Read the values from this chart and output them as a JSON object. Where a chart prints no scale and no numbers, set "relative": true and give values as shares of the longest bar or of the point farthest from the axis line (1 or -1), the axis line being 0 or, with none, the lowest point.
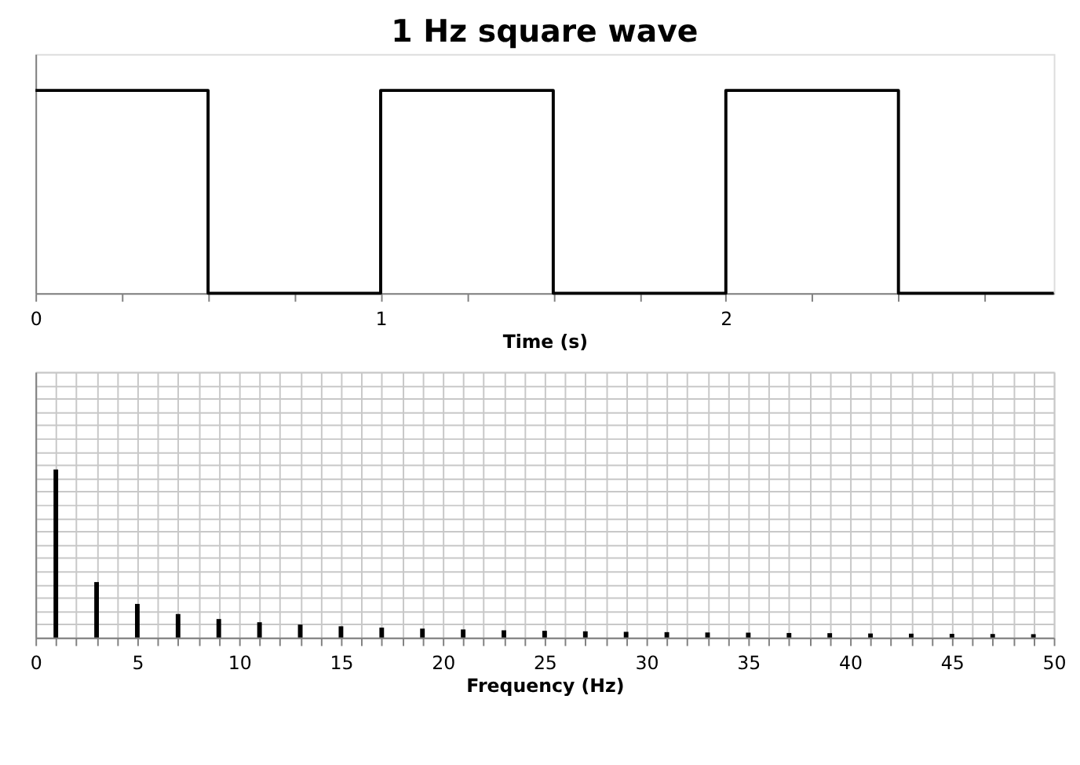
{
  "chart_data": [
    {
      "type": "step",
      "title": "1 Hz square wave",
      "xlabel": "Time (s)",
      "relative": true,
      "tick_labels": "x",
      "grid": false,
      "line_style": "solid",
      "x": [
        0,
        0.5,
        1,
        1.5,
        2,
        2.5,
        2.95
      ],
      "series": [
        {
          "color": "#000000",
          "values": [
            1,
            0,
            1,
            0,
            1,
            0,
            0
          ]
        }
      ],
      "xlim": [
        0,
        2.95
      ],
      "xticks": [
        0,
        {
          "value": 0.25,
          "label": null
        },
        {
          "value": 0.5,
          "label": null
        },
        {
          "value": 0.75,
          "label": null
        },
        1,
        {
          "value": 1.25,
          "label": null
        },
        {
          "value": 1.5,
          "label": null
        },
        {
          "value": 1.75,
          "label": null
        },
        2,
        {
          "value": 2.25,
          "label": null
        },
        {
          "value": 2.5,
          "label": null
        },
        {
          "value": 2.75,
          "label": null
        }
      ]
    },
    {
      "type": "bar",
      "xlabel": "Frequency (Hz)",
      "relative": true,
      "tick_labels": "x",
      "grid": true,
      "x": [
        1,
        3,
        5,
        7,
        9,
        11,
        13,
        15,
        17,
        19,
        21,
        23,
        25,
        27,
        29,
        31,
        33,
        35,
        37,
        39,
        41,
        43,
        45,
        47,
        49
      ],
      "series": [
        {
          "color": "#000000",
          "values": [
            1,
            0.33,
            0.2,
            0.14,
            0.11,
            0.091,
            0.077,
            0.067,
            0.059,
            0.053,
            0.048,
            0.043,
            0.04,
            0.037,
            0.034,
            0.032,
            0.03,
            0.029,
            0.027,
            0.026,
            0.024,
            0.023,
            0.022,
            0.021,
            0.02
          ]
        }
      ],
      "xlim": [
        0,
        50
      ],
      "xticks": [
        0,
        {
          "value": 1,
          "label": null
        },
        {
          "value": 2,
          "label": null
        },
        {
          "value": 3,
          "label": null
        },
        {
          "value": 4,
          "label": null
        },
        5,
        {
          "value": 6,
          "label": null
        },
        {
          "value": 7,
          "label": null
        },
        {
          "value": 8,
          "label": null
        },
        {
          "value": 9,
          "label": null
        },
        10,
        {
          "value": 11,
          "label": null
        },
        {
          "value": 12,
          "label": null
        },
        {
          "value": 13,
          "label": null
        },
        {
          "value": 14,
          "label": null
        },
        15,
        {
          "value": 16,
          "label": null
        },
        {
          "value": 17,
          "label": null
        },
        {
          "value": 18,
          "label": null
        },
        {
          "value": 19,
          "label": null
        },
        20,
        {
          "value": 21,
          "label": null
        },
        {
          "value": 22,
          "label": null
        },
        {
          "value": 23,
          "label": null
        },
        {
          "value": 24,
          "label": null
        },
        25,
        {
          "value": 26,
          "label": null
        },
        {
          "value": 27,
          "label": null
        },
        {
          "value": 28,
          "label": null
        },
        {
          "value": 29,
          "label": null
        },
        30,
        {
          "value": 31,
          "label": null
        },
        {
          "value": 32,
          "label": null
        },
        {
          "value": 33,
          "label": null
        },
        {
          "value": 34,
          "label": null
        },
        35,
        {
          "value": 36,
          "label": null
        },
        {
          "value": 37,
          "label": null
        },
        {
          "value": 38,
          "label": null
        },
        {
          "value": 39,
          "label": null
        },
        40,
        {
          "value": 41,
          "label": null
        },
        {
          "value": 42,
          "label": null
        },
        {
          "value": 43,
          "label": null
        },
        {
          "value": 44,
          "label": null
        },
        45,
        {
          "value": 46,
          "label": null
        },
        {
          "value": 47,
          "label": null
        },
        {
          "value": 48,
          "label": null
        },
        {
          "value": 49,
          "label": null
        },
        50
      ]
    }
  ]
}
